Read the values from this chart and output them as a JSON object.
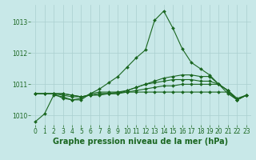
{
  "title": "",
  "xlabel": "Graphe pression niveau de la mer (hPa)",
  "ylabel": "",
  "background_color": "#c8e8e8",
  "grid_color": "#aacfcf",
  "line_color": "#1a6620",
  "xlim": [
    -0.5,
    23.5
  ],
  "ylim": [
    1009.7,
    1013.55
  ],
  "yticks": [
    1010,
    1011,
    1012,
    1013
  ],
  "xticks": [
    0,
    1,
    2,
    3,
    4,
    5,
    6,
    7,
    8,
    9,
    10,
    11,
    12,
    13,
    14,
    15,
    16,
    17,
    18,
    19,
    20,
    21,
    22,
    23
  ],
  "series": [
    {
      "x": [
        0,
        1,
        2,
        3,
        4,
        5,
        6,
        7,
        8,
        9,
        10,
        11,
        12,
        13,
        14,
        15,
        16,
        17,
        18,
        19,
        20,
        21,
        22,
        23
      ],
      "y": [
        1009.8,
        1010.05,
        1010.65,
        1010.6,
        1010.5,
        1010.5,
        1010.7,
        1010.85,
        1011.05,
        1011.25,
        1011.55,
        1011.85,
        1012.1,
        1013.05,
        1013.35,
        1012.8,
        1012.15,
        1011.7,
        1011.5,
        1011.3,
        1011.0,
        1010.7,
        1010.5,
        1010.65
      ]
    },
    {
      "x": [
        0,
        1,
        2,
        3,
        4,
        5,
        6,
        7,
        8,
        9,
        10,
        11,
        12,
        13,
        14,
        15,
        16,
        17,
        18,
        19,
        20,
        21,
        22,
        23
      ],
      "y": [
        1010.7,
        1010.7,
        1010.7,
        1010.65,
        1010.6,
        1010.6,
        1010.65,
        1010.7,
        1010.7,
        1010.7,
        1010.8,
        1010.9,
        1011.0,
        1011.1,
        1011.2,
        1011.25,
        1011.3,
        1011.3,
        1011.25,
        1011.25,
        1011.0,
        1010.8,
        1010.5,
        1010.65
      ]
    },
    {
      "x": [
        0,
        1,
        2,
        3,
        4,
        5,
        6,
        7,
        8,
        9,
        10,
        11,
        12,
        13,
        14,
        15,
        16,
        17,
        18,
        19,
        20,
        21,
        22,
        23
      ],
      "y": [
        1010.7,
        1010.7,
        1010.7,
        1010.7,
        1010.65,
        1010.6,
        1010.65,
        1010.7,
        1010.7,
        1010.75,
        1010.8,
        1010.9,
        1011.0,
        1011.05,
        1011.1,
        1011.15,
        1011.15,
        1011.15,
        1011.1,
        1011.1,
        1011.0,
        1010.8,
        1010.55,
        1010.65
      ]
    },
    {
      "x": [
        0,
        1,
        2,
        3,
        4,
        5,
        6,
        7,
        8,
        9,
        10,
        11,
        12,
        13,
        14,
        15,
        16,
        17,
        18,
        19,
        20,
        21,
        22,
        23
      ],
      "y": [
        1010.7,
        1010.7,
        1010.7,
        1010.7,
        1010.65,
        1010.6,
        1010.65,
        1010.65,
        1010.7,
        1010.7,
        1010.75,
        1010.8,
        1010.85,
        1010.9,
        1010.95,
        1010.95,
        1011.0,
        1011.0,
        1011.0,
        1011.0,
        1011.0,
        1010.8,
        1010.5,
        1010.65
      ]
    },
    {
      "x": [
        2,
        3,
        4,
        5,
        6,
        7,
        8,
        9,
        10,
        11,
        12,
        13,
        14,
        15,
        16,
        17,
        18,
        19,
        20,
        21,
        22,
        23
      ],
      "y": [
        1010.7,
        1010.55,
        1010.5,
        1010.55,
        1010.7,
        1010.75,
        1010.75,
        1010.75,
        1010.75,
        1010.75,
        1010.75,
        1010.75,
        1010.75,
        1010.75,
        1010.75,
        1010.75,
        1010.75,
        1010.75,
        1010.75,
        1010.75,
        1010.5,
        1010.65
      ]
    }
  ],
  "marker": "D",
  "markersize": 2.0,
  "linewidth": 0.8,
  "xlabel_fontsize": 7,
  "tick_fontsize": 5.5,
  "xlabel_color": "#1a6620",
  "tick_color": "#1a6620"
}
